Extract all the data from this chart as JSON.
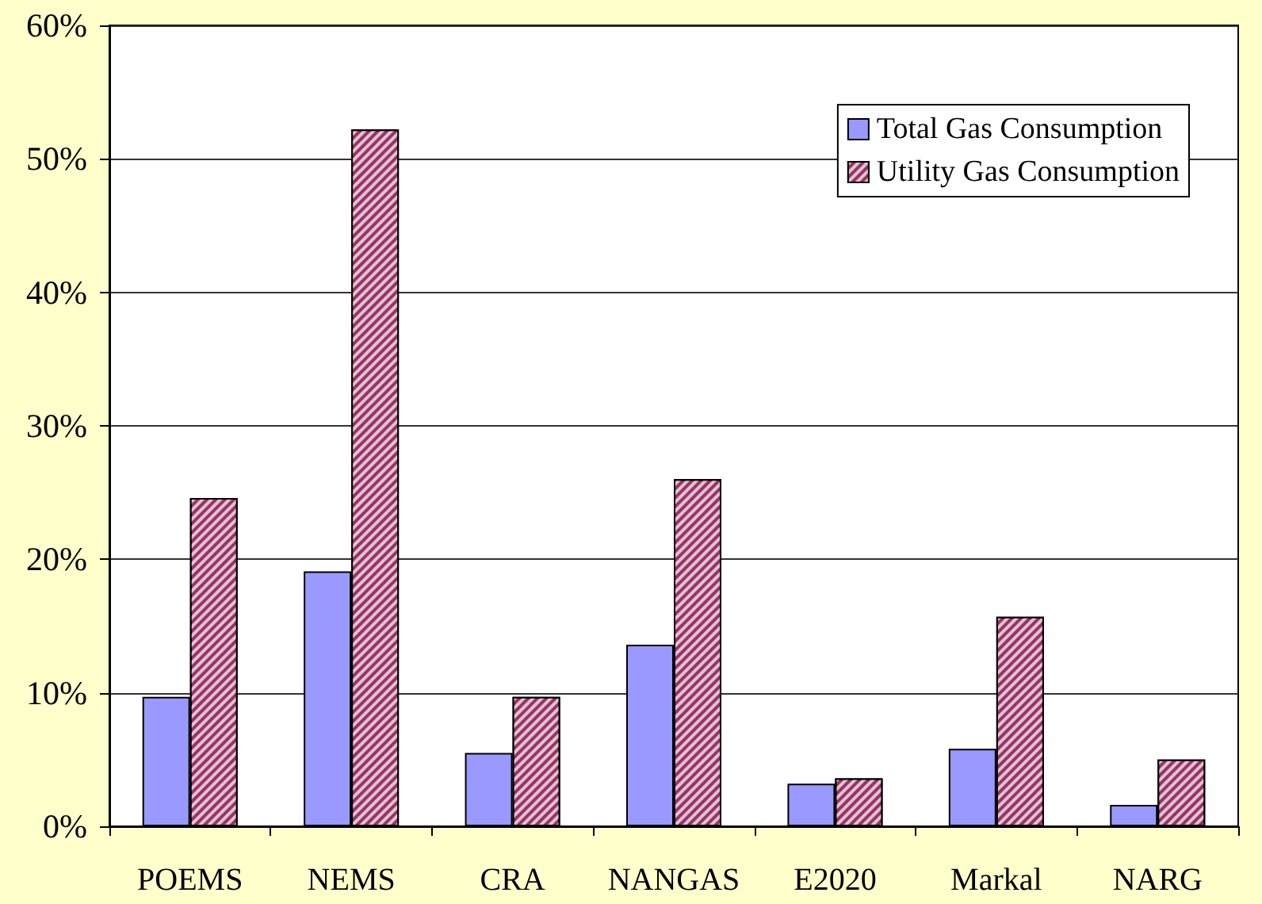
{
  "chart_data": {
    "type": "bar",
    "categories": [
      "POEMS",
      "NEMS",
      "CRA",
      "NANGAS",
      "E2020",
      "Markal",
      "NARG"
    ],
    "series": [
      {
        "name": "Total Gas Consumption",
        "color": "#9999ff",
        "values": [
          9.7,
          19.1,
          5.5,
          13.6,
          3.2,
          5.8,
          1.6
        ]
      },
      {
        "name": "Utility Gas Consumption",
        "color": "#993366",
        "values": [
          24.6,
          52.2,
          9.7,
          26.0,
          3.6,
          15.7,
          5.0
        ]
      }
    ],
    "ylim": [
      0,
      60
    ],
    "yticks": [
      {
        "value": 0,
        "label": "0%"
      },
      {
        "value": 10,
        "label": "10%"
      },
      {
        "value": 20,
        "label": "20%"
      },
      {
        "value": 30,
        "label": "30%"
      },
      {
        "value": 40,
        "label": "40%"
      },
      {
        "value": 50,
        "label": "50%"
      },
      {
        "value": 60,
        "label": "60%"
      }
    ],
    "grid": "y",
    "legend": "top right"
  }
}
